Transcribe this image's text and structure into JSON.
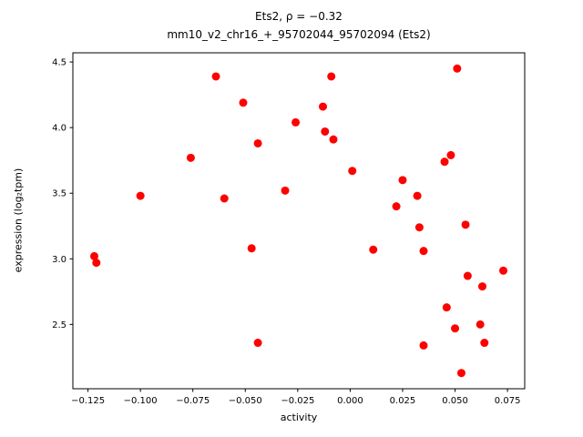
{
  "chart_data": {
    "type": "scatter",
    "title_line1": "Ets2, ρ = −0.32",
    "title_line2": "mm10_v2_chr16_+_95702044_95702094 (Ets2)",
    "xlabel": "activity",
    "ylabel": "expression (log₂tpm)",
    "marker_color": "#ff0000",
    "marker_radius": 4.5,
    "xlim": [
      -0.1322,
      0.0832
    ],
    "ylim": [
      2.01,
      4.57
    ],
    "xticks": [
      -0.125,
      -0.1,
      -0.075,
      -0.05,
      -0.025,
      0.0,
      0.025,
      0.05,
      0.075
    ],
    "xtick_labels": [
      "−0.125",
      "−0.100",
      "−0.075",
      "−0.050",
      "−0.025",
      "0.000",
      "0.025",
      "0.050",
      "0.075"
    ],
    "yticks": [
      2.5,
      3.0,
      3.5,
      4.0,
      4.5
    ],
    "ytick_labels": [
      "2.5",
      "3.0",
      "3.5",
      "4.0",
      "4.5"
    ],
    "grid": false,
    "legend": "none",
    "points": [
      [
        -0.122,
        3.02
      ],
      [
        -0.121,
        2.97
      ],
      [
        -0.1,
        3.48
      ],
      [
        -0.076,
        3.77
      ],
      [
        -0.064,
        4.39
      ],
      [
        -0.06,
        3.46
      ],
      [
        -0.051,
        4.19
      ],
      [
        -0.047,
        3.08
      ],
      [
        -0.044,
        3.88
      ],
      [
        -0.044,
        2.36
      ],
      [
        -0.031,
        3.52
      ],
      [
        -0.026,
        4.04
      ],
      [
        -0.013,
        4.16
      ],
      [
        -0.012,
        3.97
      ],
      [
        -0.009,
        4.39
      ],
      [
        -0.008,
        3.91
      ],
      [
        0.001,
        3.67
      ],
      [
        0.011,
        3.07
      ],
      [
        0.022,
        3.4
      ],
      [
        0.025,
        3.6
      ],
      [
        0.032,
        3.48
      ],
      [
        0.033,
        3.24
      ],
      [
        0.035,
        3.06
      ],
      [
        0.035,
        2.34
      ],
      [
        0.045,
        3.74
      ],
      [
        0.046,
        2.63
      ],
      [
        0.048,
        3.79
      ],
      [
        0.05,
        2.47
      ],
      [
        0.051,
        4.45
      ],
      [
        0.053,
        2.13
      ],
      [
        0.055,
        3.26
      ],
      [
        0.056,
        2.87
      ],
      [
        0.062,
        2.5
      ],
      [
        0.063,
        2.79
      ],
      [
        0.064,
        2.36
      ],
      [
        0.073,
        2.91
      ]
    ]
  }
}
